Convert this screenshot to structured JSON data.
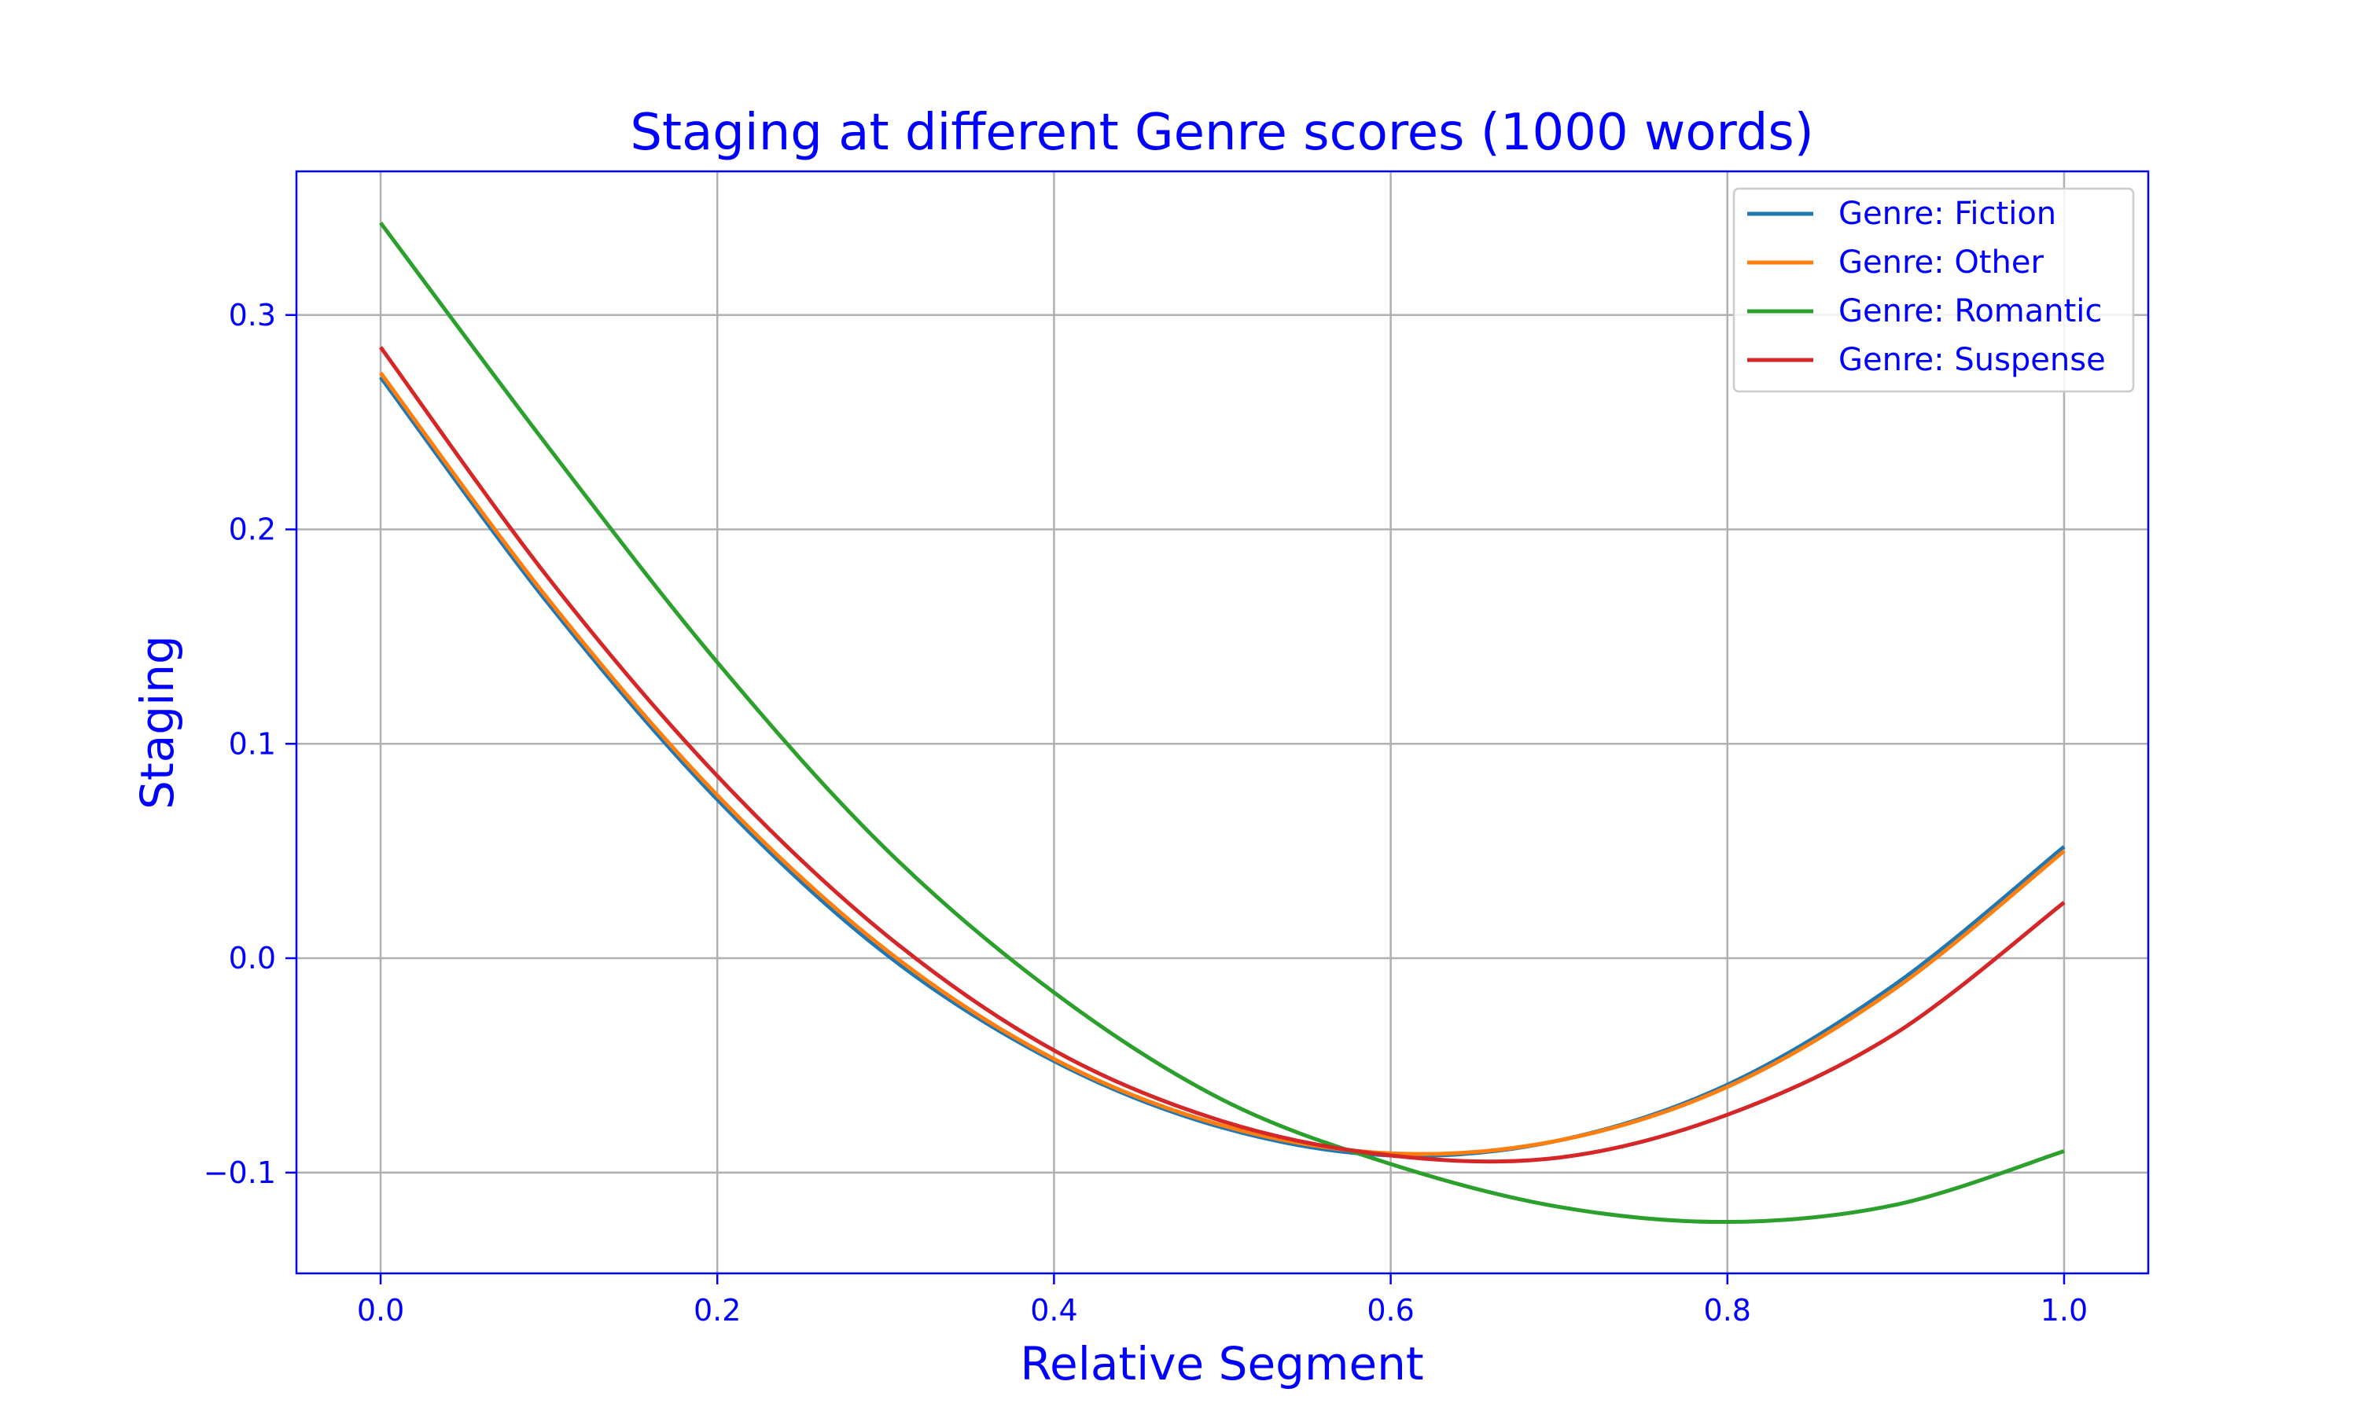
{
  "chart_data": {
    "type": "line",
    "title": "Staging at different Genre scores (1000 words)",
    "xlabel": "Relative Segment",
    "ylabel": "Staging",
    "xlim": [
      -0.05,
      1.05
    ],
    "ylim": [
      -0.147,
      0.367
    ],
    "xticks": [
      0.0,
      0.2,
      0.4,
      0.6,
      0.8,
      1.0
    ],
    "xtick_labels": [
      "0.0",
      "0.2",
      "0.4",
      "0.6",
      "0.8",
      "1.0"
    ],
    "yticks": [
      -0.1,
      0.0,
      0.1,
      0.2,
      0.3
    ],
    "ytick_labels": [
      "−0.1",
      "0.0",
      "0.1",
      "0.2",
      "0.3"
    ],
    "grid": true,
    "legend_position": "top-right",
    "colors": {
      "text": "#0000ff",
      "axes": "#0000ff",
      "grid": "#b0b0b0"
    },
    "x": [
      0.0,
      0.1,
      0.2,
      0.3,
      0.4,
      0.5,
      0.6,
      0.7,
      0.8,
      0.9,
      1.0
    ],
    "series": [
      {
        "name": "Genre: Fiction",
        "color": "#1f77b4",
        "values": [
          0.271,
          0.165,
          0.074,
          0.002,
          -0.048,
          -0.079,
          -0.092,
          -0.085,
          -0.059,
          -0.012,
          0.052
        ]
      },
      {
        "name": "Genre: Other",
        "color": "#ff7f0e",
        "values": [
          0.273,
          0.167,
          0.076,
          0.004,
          -0.047,
          -0.078,
          -0.091,
          -0.085,
          -0.06,
          -0.014,
          0.05
        ]
      },
      {
        "name": "Genre: Romantic",
        "color": "#2ca02c",
        "values": [
          0.343,
          0.238,
          0.138,
          0.051,
          -0.016,
          -0.066,
          -0.096,
          -0.116,
          -0.123,
          -0.115,
          -0.09
        ]
      },
      {
        "name": "Genre: Suspense",
        "color": "#d62728",
        "values": [
          0.285,
          0.177,
          0.085,
          0.011,
          -0.043,
          -0.076,
          -0.092,
          -0.093,
          -0.073,
          -0.035,
          0.026
        ]
      }
    ]
  }
}
